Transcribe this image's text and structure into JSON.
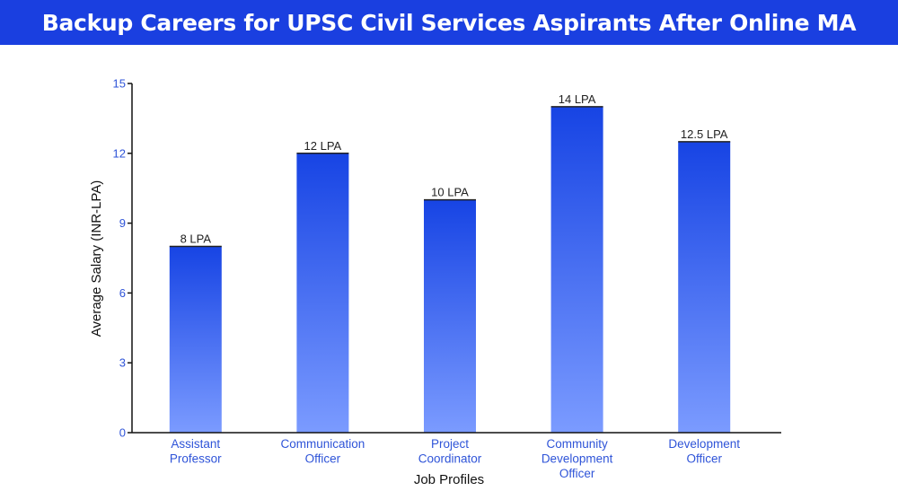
{
  "header": {
    "title": "Backup Careers for UPSC Civil Services Aspirants After Online MA"
  },
  "colors": {
    "header_bg": "#1a3fe0",
    "bar_top": "#1744e4",
    "bar_bottom": "#7b9bff",
    "tick_text": "#2f54d8",
    "axis": "#111111"
  },
  "chart_data": {
    "type": "bar",
    "categories": [
      [
        "Assistant",
        "Professor"
      ],
      [
        "Communication",
        "Officer"
      ],
      [
        "Project",
        "Coordinator"
      ],
      [
        "Community",
        "Development",
        "Officer"
      ],
      [
        "Development",
        "Officer"
      ]
    ],
    "values": [
      8,
      12,
      10,
      14,
      12.5
    ],
    "data_labels": [
      "8 LPA",
      "12 LPA",
      "10 LPA",
      "14 LPA",
      "12.5 LPA"
    ],
    "xlabel": "Job Profiles",
    "ylabel": "Average Salary  (INR-LPA)",
    "ylim": [
      0,
      15
    ],
    "yticks": [
      0,
      3,
      6,
      9,
      12,
      15
    ],
    "grid": false,
    "legend": "none"
  }
}
